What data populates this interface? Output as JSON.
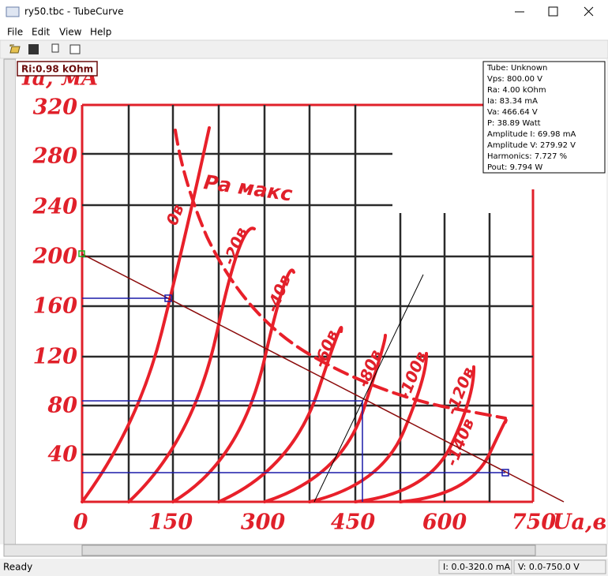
{
  "window": {
    "title": "ry50.tbc - TubeCurve"
  },
  "menu": [
    "File",
    "Edit",
    "View",
    "Help"
  ],
  "overlay": {
    "ri": "Ri:0.98 kOhm",
    "info": [
      "Tube: Unknown",
      "Vps: 800.00 V",
      "Ra: 4.00 kOhm",
      "Ia: 83.34 mA",
      "Va: 466.64 V",
      "P: 38.89 Watt",
      "Amplitude I: 69.98 mA",
      "Amplitude V: 279.92 V",
      "Harmonics: 7.727 %",
      "Pout: 9.794 W"
    ]
  },
  "graph": {
    "y_axis_label": "Iа, мА",
    "x_axis_label": "Uа,в",
    "y_ticks": [
      "320",
      "280",
      "240",
      "200",
      "160",
      "120",
      "80",
      "40"
    ],
    "x_ticks": [
      "0",
      "150",
      "300",
      "450",
      "600",
      "750"
    ],
    "curve_labels": [
      "0в",
      "-20в",
      "-40в",
      "-60в",
      "-80в",
      "-100в",
      "-120в",
      "-140в"
    ],
    "power_label": "Pа макс"
  },
  "status": {
    "message": "Ready",
    "current_range": "I: 0.0-320.0 mA",
    "voltage_range": "V: 0.0-750.0 V"
  }
}
